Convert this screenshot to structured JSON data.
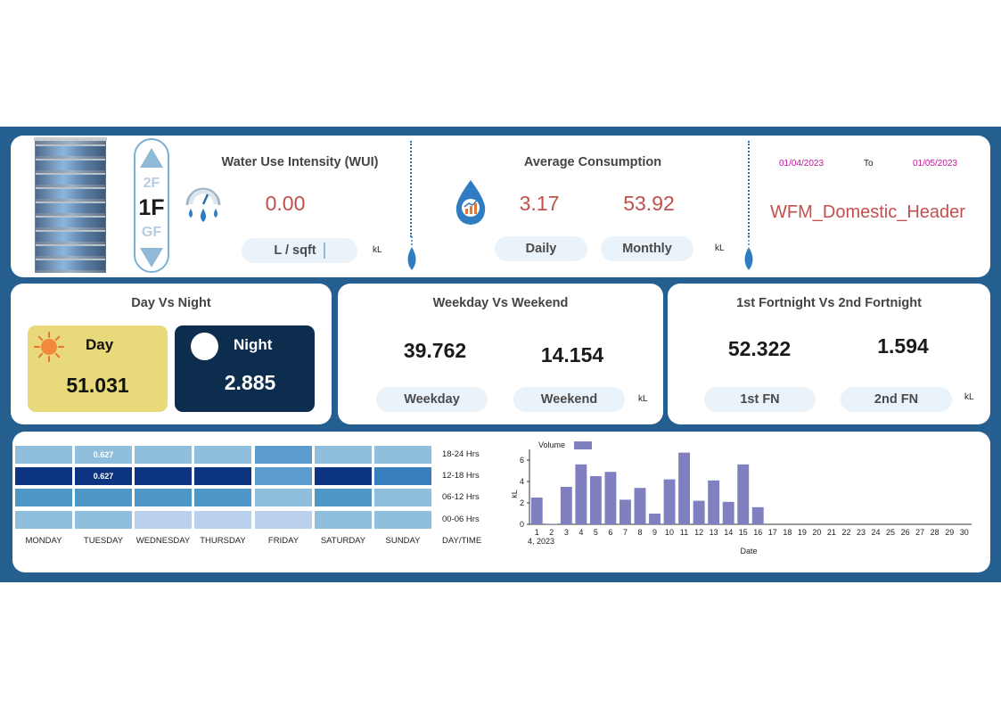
{
  "colors": {
    "background": "#245f8f",
    "card": "#ffffff",
    "pill": "#eaf3fa",
    "accent_red": "#c0504d",
    "date_magenta": "#c0189a",
    "day_card": "#e8d97a",
    "night_card": "#0c2d4e",
    "bar": "#8080c0"
  },
  "floor_selector": {
    "up_icon": "triangle-up-icon",
    "down_icon": "triangle-down-icon",
    "above": "2F",
    "current": "1F",
    "below": "GF"
  },
  "wui": {
    "title": "Water Use Intensity (WUI)",
    "icon": "gauge-water-drops-icon",
    "value": "0.00",
    "unit_button": "L / sqft",
    "unit": "kL"
  },
  "avg": {
    "title": "Average Consumption",
    "icon": "water-drop-chart-icon",
    "daily_value": "3.17",
    "monthly_value": "53.92",
    "daily_label": "Daily",
    "monthly_label": "Monthly",
    "unit": "kL"
  },
  "date_range": {
    "from": "01/04/2023",
    "separator": "To",
    "to": "01/05/2023",
    "header": "WFM_Domestic_Header"
  },
  "day_night": {
    "title": "Day Vs Night",
    "day_label": "Day",
    "day_value": "51.031",
    "day_icon": "sun-icon",
    "night_label": "Night",
    "night_value": "2.885",
    "night_icon": "moon-icon"
  },
  "weekday_weekend": {
    "title": "Weekday Vs Weekend",
    "weekday_value": "39.762",
    "weekend_value": "14.154",
    "weekday_label": "Weekday",
    "weekend_label": "Weekend",
    "unit": "kL"
  },
  "fortnight": {
    "title": "1st Fortnight Vs 2nd Fortnight",
    "first_value": "52.322",
    "second_value": "1.594",
    "first_label": "1st FN",
    "second_label": "2nd FN",
    "unit": "kL"
  },
  "heatmap": {
    "days": [
      "MONDAY",
      "TUESDAY",
      "WEDNESDAY",
      "THURSDAY",
      "FRIDAY",
      "SATURDAY",
      "SUNDAY"
    ],
    "corner_label": "DAY/TIME",
    "rows": [
      {
        "label": "18-24 Hrs",
        "colors": [
          "#8fbfdc",
          "#8fbfdc",
          "#8fbfdc",
          "#8fbfdc",
          "#5a9ccb",
          "#8fbfdc",
          "#8fbfdc"
        ],
        "texts": [
          "",
          "0.627",
          "",
          "",
          "",
          "",
          ""
        ]
      },
      {
        "label": "12-18 Hrs",
        "colors": [
          "#0d3480",
          "#0d3480",
          "#0d3480",
          "#0d3480",
          "#5a9ccb",
          "#0d3480",
          "#3a7fbd"
        ],
        "texts": [
          "",
          "0.627",
          "",
          "",
          "",
          "",
          ""
        ]
      },
      {
        "label": "06-12 Hrs",
        "colors": [
          "#4f96c9",
          "#4f96c9",
          "#4f96c9",
          "#4f96c9",
          "#8fbfdc",
          "#4f96c9",
          "#8fbfdc"
        ],
        "texts": [
          "",
          "",
          "",
          "",
          "",
          "",
          ""
        ]
      },
      {
        "label": "00-06 Hrs",
        "colors": [
          "#8fbfdc",
          "#8fbfdc",
          "#b9d1ec",
          "#b9d1ec",
          "#b9d1ec",
          "#8fbfdc",
          "#8fbfdc"
        ],
        "texts": [
          "",
          "",
          "",
          "",
          "",
          "",
          ""
        ]
      }
    ]
  },
  "chart_data": {
    "type": "bar",
    "legend": "Volume",
    "ylabel": "kL",
    "xlabel": "Date",
    "x_sublabel": "4, 2023",
    "ylim": [
      0,
      7
    ],
    "yticks": [
      0,
      2,
      4,
      6
    ],
    "categories": [
      "1",
      "2",
      "3",
      "4",
      "5",
      "6",
      "7",
      "8",
      "9",
      "10",
      "11",
      "12",
      "13",
      "14",
      "15",
      "16",
      "17",
      "18",
      "19",
      "20",
      "21",
      "22",
      "23",
      "24",
      "25",
      "26",
      "27",
      "28",
      "29",
      "30"
    ],
    "values": [
      2.5,
      0.05,
      3.5,
      5.6,
      4.5,
      4.9,
      2.3,
      3.4,
      1.0,
      4.2,
      6.7,
      2.2,
      4.1,
      2.1,
      5.6,
      1.6,
      0,
      0,
      0,
      0,
      0,
      0,
      0,
      0,
      0,
      0,
      0,
      0,
      0,
      0
    ]
  }
}
